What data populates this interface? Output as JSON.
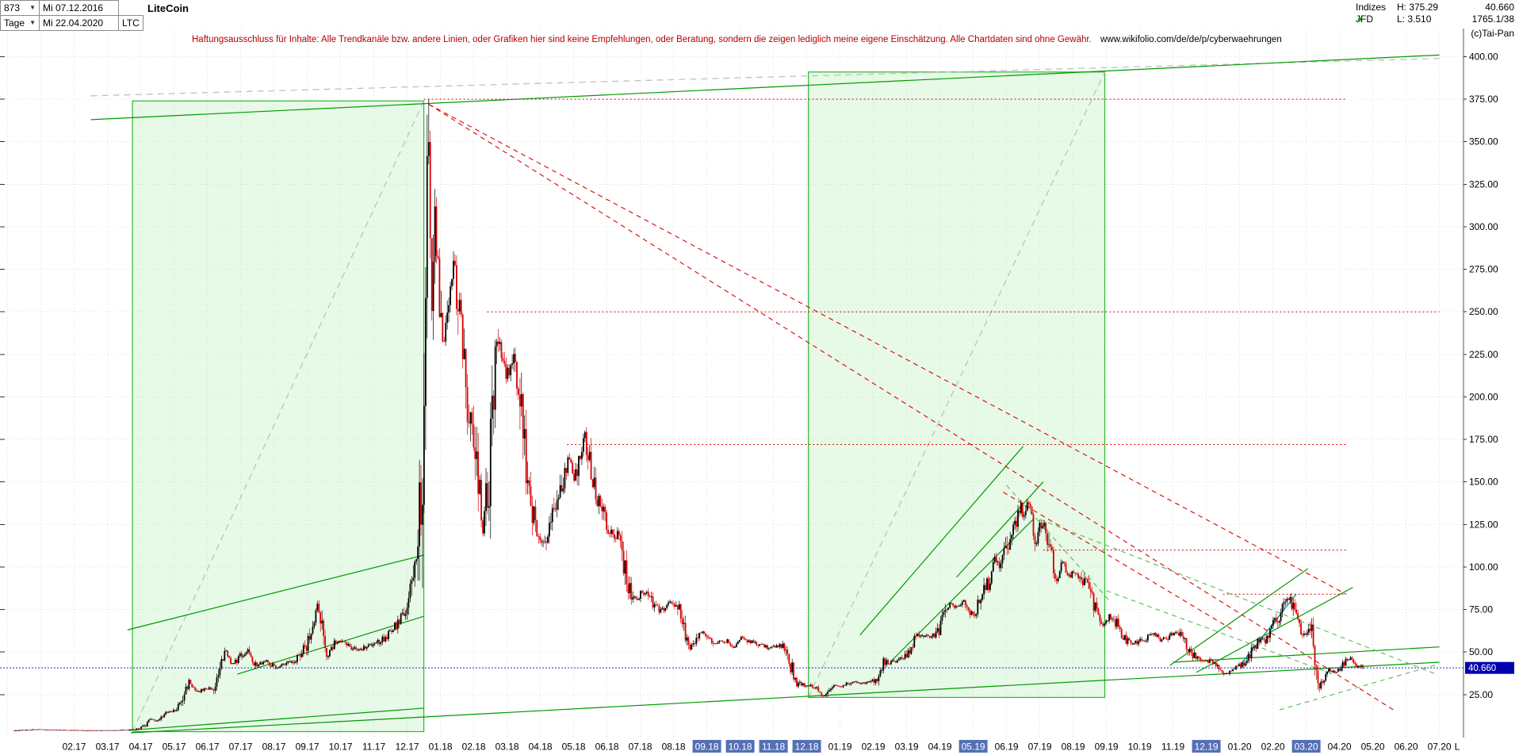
{
  "icons": {
    "chevron_down": "▼",
    "up_triangle": "▲"
  },
  "header": {
    "bars_count": "873",
    "date_from": "Mi 07.12.2016",
    "timeframe": "Tage",
    "date_to": "Mi 22.04.2020",
    "symbol": "LTC",
    "title": "LiteCoin",
    "right": {
      "market": "Indizes",
      "broker": "JFD",
      "high": "H: 375.29",
      "low": "L: 3.510",
      "last": "40.660",
      "volume": "1765.1/38",
      "copyright": "(c)Tai-Pan"
    }
  },
  "disclaimer": {
    "text": "Haftungsausschluss für Inhalte: Alle Trendkanäle bzw. andere Linien, oder Grafiken hier sind keine Empfehlungen, oder Beratung, sondern die zeigen lediglich meine eigene Einschätzung. Alle Chartdaten sind ohne Gewähr.",
    "url": "www.wikifolio.com/de/de/p/cyberwaehrungen"
  },
  "price_badge": "40.660",
  "colors": {
    "up": "#000000",
    "down": "#d40000",
    "grid": "#e0e0e0",
    "box_fill": "rgba(144,226,144,0.22)",
    "box_stroke": "#2db82d",
    "green": "#009900",
    "green_dashed": "#55bb55",
    "teal": "#00a0a0",
    "gray_dashed": "#c0c0c0",
    "red": "#dd0000",
    "blue_line": "#2929cc",
    "badge_bg": "#0101b0",
    "highlight_bg": "#5470b6"
  },
  "chart_data": {
    "type": "candlestick",
    "title": "LiteCoin",
    "timeframe": "Tage",
    "bars": 873,
    "date_start": "07.12.2016",
    "date_end": "22.04.2020",
    "session_high": 375.29,
    "session_low": 3.51,
    "last_price": 40.66,
    "ylim": [
      0,
      410
    ],
    "y_ticks": [
      400,
      375,
      350,
      325,
      300,
      275,
      250,
      225,
      200,
      175,
      150,
      125,
      100,
      75,
      50,
      25
    ],
    "x_tick_labels": [
      "02.17",
      "03.17",
      "04.17",
      "05.17",
      "06.17",
      "07.17",
      "08.17",
      "09.17",
      "10.17",
      "11.17",
      "12.17",
      "01.18",
      "02.18",
      "03.18",
      "04.18",
      "05.18",
      "06.18",
      "07.18",
      "08.18",
      "09.18",
      "10.18",
      "11.18",
      "12.18",
      "01.19",
      "02.19",
      "03.19",
      "04.19",
      "05.19",
      "06.19",
      "07.19",
      "08.19",
      "09.19",
      "10.19",
      "11.19",
      "12.19",
      "01.20",
      "02.20",
      "03.20",
      "04.20",
      "05.20",
      "06.20",
      "07.20",
      "L"
    ],
    "x_highlighted": [
      "09.18",
      "10.18",
      "11.18",
      "12.18",
      "05.19",
      "12.19",
      "03.20"
    ],
    "price_anchors": [
      [
        0,
        3.7
      ],
      [
        0.6,
        4.4
      ],
      [
        1.2,
        4.1
      ],
      [
        1.8,
        3.9
      ],
      [
        2.4,
        3.8
      ],
      [
        3,
        3.9
      ],
      [
        3.6,
        4.2
      ],
      [
        3.95,
        6.5
      ],
      [
        4.1,
        11.5
      ],
      [
        4.25,
        9
      ],
      [
        4.55,
        14
      ],
      [
        4.85,
        15.5
      ],
      [
        5.05,
        22
      ],
      [
        5.25,
        33
      ],
      [
        5.45,
        26
      ],
      [
        5.75,
        28.5
      ],
      [
        6.05,
        29
      ],
      [
        6.35,
        51
      ],
      [
        6.55,
        42
      ],
      [
        6.8,
        48
      ],
      [
        7.05,
        51
      ],
      [
        7.25,
        42
      ],
      [
        7.55,
        45
      ],
      [
        7.85,
        41
      ],
      [
        8.15,
        43
      ],
      [
        8.45,
        46
      ],
      [
        8.75,
        53
      ],
      [
        8.95,
        64
      ],
      [
        9.1,
        78
      ],
      [
        9.25,
        62
      ],
      [
        9.4,
        49
      ],
      [
        9.65,
        56
      ],
      [
        9.95,
        55
      ],
      [
        10.3,
        51
      ],
      [
        10.65,
        54.5
      ],
      [
        10.95,
        56
      ],
      [
        11.25,
        61
      ],
      [
        11.55,
        68
      ],
      [
        11.8,
        77
      ],
      [
        11.95,
        92
      ],
      [
        12.1,
        103
      ],
      [
        12.25,
        145
      ],
      [
        12.35,
        230
      ],
      [
        12.42,
        368
      ],
      [
        12.52,
        245
      ],
      [
        12.63,
        305
      ],
      [
        12.75,
        262
      ],
      [
        12.9,
        235
      ],
      [
        13.05,
        245
      ],
      [
        13.18,
        282
      ],
      [
        13.35,
        252
      ],
      [
        13.55,
        205
      ],
      [
        13.75,
        185
      ],
      [
        13.95,
        152
      ],
      [
        14.05,
        118
      ],
      [
        14.25,
        152
      ],
      [
        14.45,
        222
      ],
      [
        14.6,
        230
      ],
      [
        14.8,
        212
      ],
      [
        15,
        225
      ],
      [
        15.2,
        195
      ],
      [
        15.4,
        158
      ],
      [
        15.6,
        128
      ],
      [
        15.8,
        114
      ],
      [
        16,
        120
      ],
      [
        16.2,
        134
      ],
      [
        16.45,
        148
      ],
      [
        16.65,
        163
      ],
      [
        16.85,
        152
      ],
      [
        17,
        168
      ],
      [
        17.15,
        176
      ],
      [
        17.35,
        150
      ],
      [
        17.55,
        138
      ],
      [
        17.75,
        128
      ],
      [
        17.95,
        119
      ],
      [
        18.15,
        117
      ],
      [
        18.35,
        99
      ],
      [
        18.55,
        79
      ],
      [
        18.75,
        83
      ],
      [
        18.95,
        85
      ],
      [
        19.15,
        80
      ],
      [
        19.35,
        74
      ],
      [
        19.6,
        77
      ],
      [
        19.85,
        79
      ],
      [
        20.05,
        71
      ],
      [
        20.25,
        51
      ],
      [
        20.45,
        57
      ],
      [
        20.7,
        62
      ],
      [
        20.9,
        58
      ],
      [
        21.1,
        55
      ],
      [
        21.35,
        57
      ],
      [
        21.6,
        53
      ],
      [
        21.85,
        58
      ],
      [
        22.1,
        56
      ],
      [
        22.4,
        53.5
      ],
      [
        22.7,
        52.5
      ],
      [
        23,
        54
      ],
      [
        23.2,
        52
      ],
      [
        23.3,
        43
      ],
      [
        23.5,
        32.5
      ],
      [
        23.7,
        31
      ],
      [
        23.9,
        30
      ],
      [
        24.1,
        28
      ],
      [
        24.28,
        23.5
      ],
      [
        24.45,
        27
      ],
      [
        24.6,
        31.5
      ],
      [
        24.8,
        29.5
      ],
      [
        25,
        31
      ],
      [
        25.25,
        32.5
      ],
      [
        25.5,
        31.5
      ],
      [
        25.75,
        33
      ],
      [
        25.95,
        34
      ],
      [
        26.1,
        44
      ],
      [
        26.3,
        43
      ],
      [
        26.55,
        45.5
      ],
      [
        26.8,
        47
      ],
      [
        27,
        56
      ],
      [
        27.25,
        60.5
      ],
      [
        27.5,
        59
      ],
      [
        27.75,
        61
      ],
      [
        27.9,
        74
      ],
      [
        28.1,
        79
      ],
      [
        28.3,
        76
      ],
      [
        28.5,
        80
      ],
      [
        28.65,
        74
      ],
      [
        28.85,
        73.5
      ],
      [
        29.05,
        82
      ],
      [
        29.25,
        91
      ],
      [
        29.45,
        103
      ],
      [
        29.6,
        98
      ],
      [
        29.8,
        112
      ],
      [
        30,
        122
      ],
      [
        30.2,
        136
      ],
      [
        30.35,
        128
      ],
      [
        30.5,
        140
      ],
      [
        30.65,
        112
      ],
      [
        30.8,
        126
      ],
      [
        31,
        119
      ],
      [
        31.3,
        90
      ],
      [
        31.45,
        104
      ],
      [
        31.65,
        95
      ],
      [
        31.9,
        97
      ],
      [
        32.1,
        92
      ],
      [
        32.3,
        86
      ],
      [
        32.5,
        74
      ],
      [
        32.7,
        66
      ],
      [
        32.9,
        71
      ],
      [
        33.1,
        67
      ],
      [
        33.3,
        58
      ],
      [
        33.55,
        55
      ],
      [
        33.8,
        56.5
      ],
      [
        34,
        58
      ],
      [
        34.2,
        60.5
      ],
      [
        34.45,
        57
      ],
      [
        34.7,
        59.5
      ],
      [
        34.9,
        61.5
      ],
      [
        35.1,
        58
      ],
      [
        35.3,
        50
      ],
      [
        35.5,
        47
      ],
      [
        35.75,
        45.5
      ],
      [
        35.95,
        44
      ],
      [
        36.15,
        41.5
      ],
      [
        36.35,
        37
      ],
      [
        36.6,
        40
      ],
      [
        36.8,
        42
      ],
      [
        37,
        45
      ],
      [
        37.2,
        51
      ],
      [
        37.4,
        58
      ],
      [
        37.6,
        56.5
      ],
      [
        37.8,
        67
      ],
      [
        38,
        71
      ],
      [
        38.25,
        83.5
      ],
      [
        38.45,
        72
      ],
      [
        38.65,
        62
      ],
      [
        38.85,
        61
      ],
      [
        39,
        58
      ],
      [
        39.15,
        28
      ],
      [
        39.3,
        34
      ],
      [
        39.5,
        40
      ],
      [
        39.7,
        38.5
      ],
      [
        39.9,
        43
      ],
      [
        40.1,
        46.5
      ],
      [
        40.3,
        42.5
      ],
      [
        40.5,
        40.66
      ]
    ],
    "overlays": {
      "boxes": [
        {
          "m1": 3.55,
          "m2": 12.3,
          "p_top": 374,
          "p_bottom": 3.2
        },
        {
          "m1": 23.85,
          "m2": 32.75,
          "p_top": 391,
          "p_bottom": 23.3
        }
      ],
      "gray_dashed": [
        [
          3.55,
          3.2,
          12.3,
          374
        ],
        [
          23.85,
          23.3,
          32.75,
          391
        ],
        [
          2.3,
          377,
          42.8,
          399
        ]
      ],
      "green_solid": [
        [
          2.3,
          363,
          42.8,
          401
        ],
        [
          3.4,
          63,
          12.3,
          107
        ],
        [
          3.45,
          4,
          12.3,
          17
        ],
        [
          6.7,
          37,
          12.3,
          71
        ],
        [
          3.5,
          2.5,
          42.8,
          44
        ],
        [
          25.4,
          60,
          30.3,
          171
        ],
        [
          26.3,
          44,
          30.6,
          128
        ],
        [
          28.3,
          94,
          30.9,
          150
        ],
        [
          34.7,
          42,
          38.85,
          99
        ],
        [
          35.5,
          38,
          40.2,
          88
        ],
        [
          34.8,
          44,
          42.8,
          53
        ]
      ],
      "green_dashed": [
        [
          30.8,
          128,
          42.7,
          37
        ],
        [
          32.8,
          86,
          39.6,
          37
        ],
        [
          38,
          16,
          42.8,
          43
        ],
        [
          29.8,
          148,
          32.9,
          80
        ]
      ],
      "teal_solid": [
        [
          36.8,
          42,
          38.5,
          84
        ]
      ],
      "red_dashed": [
        [
          12.45,
          372,
          41.5,
          15
        ],
        [
          12.45,
          372,
          40,
          84
        ],
        [
          29.7,
          144,
          36.6,
          63
        ]
      ],
      "red_dotted_levels": [
        [
          375,
          12.3,
          40
        ],
        [
          250,
          14.2,
          42.8
        ],
        [
          172,
          16.6,
          40
        ],
        [
          110,
          30.9,
          40
        ],
        [
          84,
          36.3,
          40
        ]
      ],
      "last_price_line": 40.66
    }
  }
}
